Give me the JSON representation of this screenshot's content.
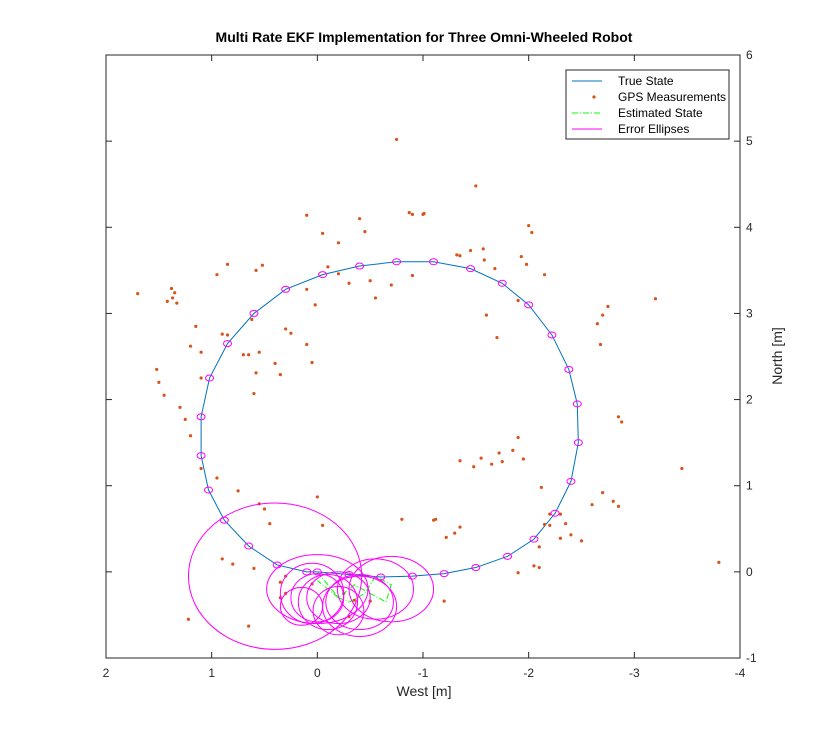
{
  "chart_data": {
    "type": "scatter",
    "title": "Multi Rate EKF Implementation for Three Omni-Wheeled Robot",
    "xlabel": "West [m]",
    "ylabel": "North [m]",
    "xlim": [
      2,
      -4
    ],
    "ylim": [
      -1,
      6
    ],
    "x_reversed": true,
    "y_axis_location": "right",
    "x_ticks": [
      "2",
      "1",
      "0",
      "-1",
      "-2",
      "-3",
      "-4"
    ],
    "y_ticks": [
      "-1",
      "0",
      "1",
      "2",
      "3",
      "4",
      "5",
      "6"
    ],
    "legend_position": "top-right",
    "legend": [
      "True State",
      "GPS Measurements",
      "Estimated State",
      "Error Ellipses"
    ],
    "colors": {
      "true_state": "#0072bd",
      "gps": "#d95319",
      "estimated": "#00ff00",
      "ellipses": "#ff00ff"
    },
    "series": [
      {
        "name": "True State",
        "style": "line",
        "x": [
          0.0,
          -0.3,
          -0.6,
          -0.9,
          -1.2,
          -1.5,
          -1.8,
          -2.05,
          -2.25,
          -2.4,
          -2.47,
          -2.46,
          -2.38,
          -2.22,
          -2.0,
          -1.75,
          -1.45,
          -1.1,
          -0.75,
          -0.4,
          -0.05,
          0.3,
          0.6,
          0.85,
          1.02,
          1.1,
          1.1,
          1.03,
          0.88,
          0.65,
          0.38,
          0.1,
          0.0
        ],
        "y": [
          0.0,
          -0.03,
          -0.06,
          -0.05,
          -0.02,
          0.05,
          0.18,
          0.38,
          0.68,
          1.05,
          1.5,
          1.95,
          2.35,
          2.75,
          3.1,
          3.35,
          3.52,
          3.6,
          3.6,
          3.55,
          3.45,
          3.28,
          3.0,
          2.65,
          2.25,
          1.8,
          1.35,
          0.95,
          0.6,
          0.3,
          0.08,
          0.0,
          0.0
        ]
      },
      {
        "name": "GPS Measurements",
        "style": "points",
        "x": [
          -0.75,
          -1.5,
          -0.9,
          -0.87,
          -2.0,
          -1.01,
          -1.0,
          -1.35,
          -1.32,
          -1.57,
          -2.03,
          -2.15,
          -1.9,
          -1.6,
          -1.7,
          -2.65,
          -2.7,
          -3.2,
          -2.75,
          -2.68,
          -2.85,
          -2.88,
          -3.45,
          -3.8,
          -2.7,
          -2.8,
          -2.85,
          -2.6,
          -2.2,
          -2.3,
          -2.15,
          -2.2,
          -2.4,
          -2.5,
          -2.1,
          -2.35,
          -2.12,
          -1.95,
          -1.9,
          -1.85,
          -1.75,
          -1.65,
          -1.72,
          -1.55,
          -1.48,
          -1.35,
          -1.12,
          -1.1,
          -0.8,
          -1.35,
          -1.3,
          -1.22,
          -2.3,
          -2.1,
          -2.05,
          -1.9,
          -1.2,
          -0.35,
          -0.3,
          -0.5,
          -0.25,
          0.05,
          0.3,
          0.35,
          0.3,
          0.35,
          -0.05,
          0.0,
          0.65,
          0.6,
          0.8,
          0.9,
          0.55,
          0.5,
          0.45,
          0.75,
          0.95,
          1.1,
          1.2,
          1.25,
          1.3,
          1.45,
          1.5,
          1.52,
          1.7,
          1.35,
          1.38,
          1.33,
          1.37,
          1.42,
          1.15,
          1.2,
          1.1,
          0.9,
          0.85,
          0.7,
          0.65,
          0.55,
          0.3,
          0.25,
          0.1,
          0.05,
          0.4,
          0.35,
          0.6,
          0.58,
          0.95,
          0.58,
          0.85,
          0.52,
          0.1,
          0.02,
          -0.1,
          -0.2,
          -0.05,
          0.1,
          -0.4,
          -1.45,
          -1.58,
          -1.68,
          -1.93,
          -1.98,
          -0.5,
          -0.7,
          -0.9,
          -0.3,
          -0.55,
          0.62,
          1.1,
          1.22,
          -0.2,
          -0.45
        ],
        "y": [
          5.02,
          4.48,
          4.15,
          4.17,
          4.02,
          4.16,
          4.15,
          3.67,
          3.68,
          3.75,
          3.94,
          3.45,
          3.15,
          2.98,
          2.72,
          2.88,
          2.98,
          3.17,
          3.08,
          2.64,
          1.8,
          1.74,
          1.2,
          0.11,
          0.92,
          0.82,
          0.76,
          0.78,
          0.67,
          0.67,
          0.55,
          0.54,
          0.43,
          0.36,
          0.29,
          0.56,
          0.98,
          1.31,
          1.56,
          1.41,
          1.28,
          1.25,
          1.38,
          1.32,
          1.22,
          1.29,
          0.61,
          0.6,
          0.61,
          0.52,
          0.45,
          0.4,
          0.39,
          0.05,
          0.07,
          -0.01,
          -0.34,
          -0.33,
          -0.52,
          -0.34,
          -0.25,
          -0.14,
          -0.25,
          -0.12,
          -0.05,
          -0.3,
          0.54,
          0.87,
          -0.63,
          0.04,
          0.09,
          0.15,
          0.79,
          0.73,
          0.56,
          0.94,
          1.09,
          1.2,
          1.58,
          1.77,
          1.91,
          2.05,
          2.2,
          2.35,
          3.23,
          3.24,
          3.29,
          3.12,
          3.18,
          3.14,
          2.85,
          2.62,
          2.55,
          2.76,
          2.75,
          2.52,
          2.52,
          2.55,
          2.82,
          2.77,
          2.64,
          2.43,
          2.42,
          2.29,
          2.07,
          2.31,
          3.45,
          3.5,
          3.57,
          3.56,
          3.28,
          3.1,
          3.54,
          3.46,
          3.93,
          4.14,
          4.1,
          3.73,
          3.62,
          3.52,
          3.66,
          3.57,
          3.38,
          3.33,
          3.44,
          3.35,
          3.18,
          2.93,
          2.25,
          -0.55,
          3.82,
          3.95
        ]
      },
      {
        "name": "Estimated State",
        "style": "dashdot",
        "x": [
          0.0,
          -0.1,
          -0.2,
          -0.3,
          -0.45,
          -0.55,
          -0.7,
          -0.65,
          -0.5,
          -0.35,
          -0.2,
          0.0
        ],
        "y": [
          0.0,
          -0.15,
          -0.3,
          -0.35,
          -0.25,
          -0.05,
          -0.15,
          -0.35,
          -0.25,
          -0.15,
          -0.3,
          -0.1
        ]
      }
    ],
    "ellipses_center": {
      "x": [
        0.0,
        -0.2,
        -0.4,
        -0.55,
        -0.7,
        -0.4,
        -0.2,
        -0.1,
        0.0,
        0.05,
        0.15,
        0.4
      ],
      "y": [
        -0.2,
        -0.3,
        -0.35,
        -0.2,
        -0.2,
        -0.4,
        -0.45,
        -0.35,
        -0.3,
        -0.25,
        -0.4,
        -0.05
      ],
      "rx": [
        0.48,
        0.3,
        0.32,
        0.36,
        0.4,
        0.35,
        0.24,
        0.28,
        0.25,
        0.3,
        0.2,
        0.82
      ],
      "ry": [
        0.4,
        0.3,
        0.32,
        0.35,
        0.38,
        0.35,
        0.28,
        0.32,
        0.28,
        0.35,
        0.22,
        0.85
      ]
    }
  }
}
